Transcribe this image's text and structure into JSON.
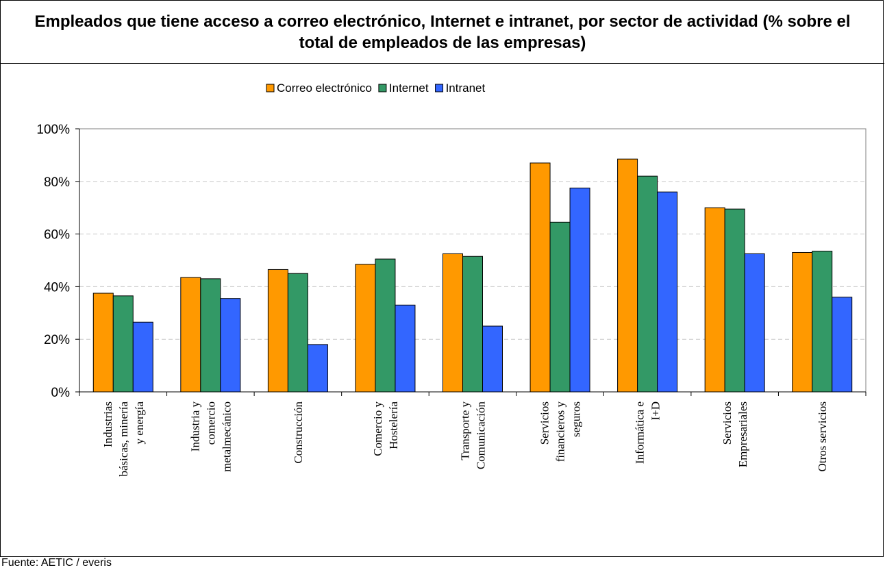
{
  "chart_data": {
    "type": "bar",
    "title": "Empleados que tiene acceso a correo electrónico, Internet e intranet, por sector de actividad (% sobre el total de empleados de las empresas)",
    "categories": [
      [
        "Industrias",
        "básicas, minería",
        "y energía"
      ],
      [
        "Industria y",
        "comercio",
        "metalmecánico"
      ],
      [
        "Construcción"
      ],
      [
        "Comercio y",
        "Hostelería"
      ],
      [
        "Transporte y",
        "Comunicación"
      ],
      [
        "Servicios",
        "financieros y",
        "seguros"
      ],
      [
        "Informática e",
        "I+D"
      ],
      [
        "Servicios",
        "Empresariales"
      ],
      [
        "Otros servicios"
      ]
    ],
    "series": [
      {
        "name": "Correo electrónico",
        "color": "#FF9900",
        "values": [
          37.5,
          43.5,
          46.5,
          48.5,
          52.5,
          87.0,
          88.5,
          70.0,
          53.0
        ]
      },
      {
        "name": "Internet",
        "color": "#339966",
        "values": [
          36.5,
          43.0,
          45.0,
          50.5,
          51.5,
          64.5,
          82.0,
          69.5,
          53.5
        ]
      },
      {
        "name": "Intranet",
        "color": "#3366FF",
        "values": [
          26.5,
          35.5,
          18.0,
          33.0,
          25.0,
          77.5,
          76.0,
          52.5,
          36.0
        ]
      }
    ],
    "y_ticks": [
      "0%",
      "20%",
      "40%",
      "60%",
      "80%",
      "100%"
    ],
    "ylim": [
      0,
      100
    ],
    "grid": "horizontal dashed",
    "legend_position": "top"
  },
  "source_text": "Fuente: AETIC / everis"
}
